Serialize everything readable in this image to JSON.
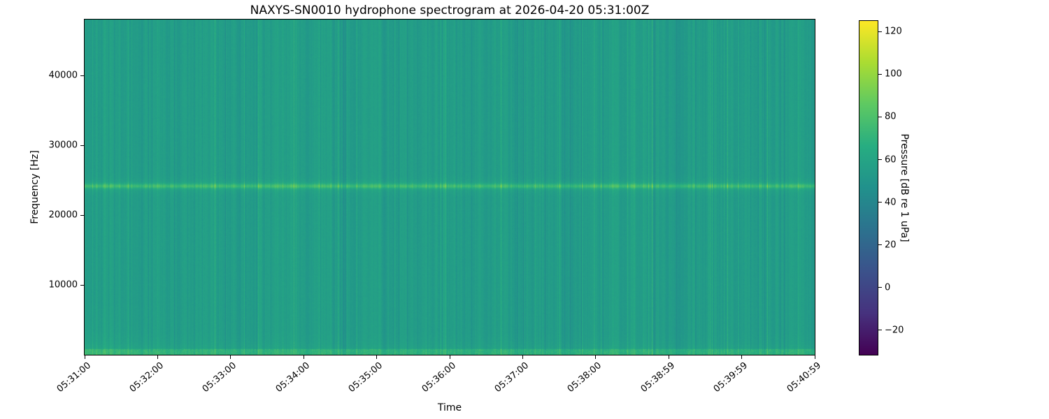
{
  "figure": {
    "background_color": "#ffffff",
    "kind": "matplotlib-style rendered plot"
  },
  "chart_data": {
    "type": "heatmap",
    "variant": "spectrogram",
    "title": "NAXYS-SN0010 hydrophone spectrogram at 2026-04-20 05:31:00Z",
    "xlabel": "Time",
    "ylabel": "Frequency [Hz]",
    "x_tick_labels": [
      "05:31:00",
      "05:32:00",
      "05:33:00",
      "05:34:00",
      "05:35:00",
      "05:36:00",
      "05:37:00",
      "05:38:00",
      "05:38:59",
      "05:39:59",
      "05:40:59"
    ],
    "x_tick_rotation_deg": 40,
    "y_tick_values": [
      10000,
      20000,
      30000,
      40000
    ],
    "y_tick_labels": [
      "10000",
      "20000",
      "30000",
      "40000"
    ],
    "freq_range_hz": [
      0,
      48000
    ],
    "grid": false,
    "legend": "none (colorbar on right)",
    "colormap": "viridis",
    "viridis_stops": [
      "#440154",
      "#46327e",
      "#3b528b",
      "#2c728e",
      "#21918c",
      "#27ad81",
      "#5ec962",
      "#aadc32",
      "#fde725"
    ],
    "colorbar": {
      "label": "Pressure [dB re 1 uPa]",
      "tick_values": [
        120,
        100,
        80,
        60,
        40,
        20,
        0,
        -20
      ],
      "tick_labels": [
        "120",
        "100",
        "80",
        "60",
        "40",
        "20",
        "0",
        "−20"
      ],
      "vmin": -31.5,
      "vmax": 125,
      "orientation": "vertical"
    },
    "content_features": {
      "background_level_db": 55,
      "background_color_approx": "#239d88",
      "tonal_band": {
        "frequency_hz": 24200,
        "peak_level_db": 80,
        "description": "narrow bright horizontal tonal line across entire duration"
      },
      "low_frequency_noise_band": {
        "below_hz": 900,
        "level_db": 73,
        "description": "bright speckled broadband strip along the bottom edge"
      },
      "left_edge_low_freq_haze": {
        "below_hz": 6000,
        "description": "slightly elevated levels at lowest frequencies near start of record"
      },
      "vertical_striping": "random column-to-column broadband level fluctuation of a few dB over full bandwidth"
    }
  }
}
